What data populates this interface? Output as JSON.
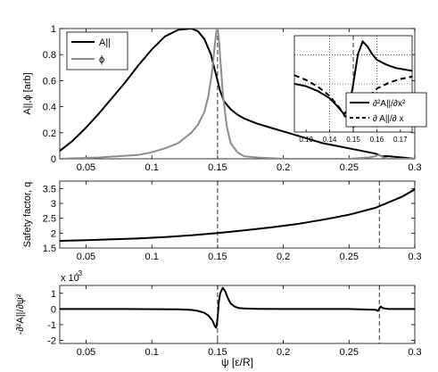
{
  "chart_data": [
    {
      "type": "line",
      "ylabel": "A||,ϕ [arb]",
      "xlim": [
        0.03,
        0.3
      ],
      "ylim": [
        0,
        1
      ],
      "xticks": [
        "0.05",
        "0.1",
        "0.15",
        "0.2",
        "0.25",
        "0.3"
      ],
      "yticks": [
        "0",
        "0.2",
        "0.4",
        "0.6",
        "0.8",
        "1"
      ],
      "legend_position": "top-left",
      "vlines": [
        0.15
      ],
      "series": [
        {
          "name": "A||",
          "color": "#000000",
          "width": 2,
          "x": [
            0.03,
            0.04,
            0.05,
            0.06,
            0.07,
            0.08,
            0.09,
            0.1,
            0.11,
            0.12,
            0.13,
            0.135,
            0.14,
            0.145,
            0.148,
            0.15,
            0.152,
            0.155,
            0.16,
            0.165,
            0.17,
            0.18,
            0.19,
            0.2,
            0.21,
            0.22,
            0.23,
            0.24,
            0.25,
            0.26,
            0.27,
            0.275,
            0.28,
            0.29,
            0.3
          ],
          "y": [
            0.06,
            0.14,
            0.24,
            0.35,
            0.47,
            0.59,
            0.72,
            0.84,
            0.94,
            0.99,
            1.0,
            0.98,
            0.92,
            0.8,
            0.68,
            0.6,
            0.52,
            0.44,
            0.38,
            0.34,
            0.31,
            0.27,
            0.24,
            0.21,
            0.18,
            0.15,
            0.12,
            0.1,
            0.08,
            0.06,
            0.04,
            0.02,
            0.02,
            0.01,
            0.0
          ]
        },
        {
          "name": "ϕ",
          "color": "#8c8c8c",
          "width": 2,
          "x": [
            0.03,
            0.06,
            0.09,
            0.1,
            0.11,
            0.12,
            0.13,
            0.135,
            0.14,
            0.143,
            0.146,
            0.148,
            0.149,
            0.15,
            0.151,
            0.152,
            0.154,
            0.157,
            0.16,
            0.165,
            0.17,
            0.18,
            0.2,
            0.22,
            0.25,
            0.265,
            0.27,
            0.273,
            0.276,
            0.28,
            0.3
          ],
          "y": [
            0.0,
            0.01,
            0.03,
            0.05,
            0.08,
            0.12,
            0.2,
            0.26,
            0.36,
            0.48,
            0.68,
            0.88,
            0.97,
            1.0,
            0.92,
            0.78,
            0.5,
            0.25,
            0.12,
            0.05,
            0.02,
            0.01,
            0.0,
            0.0,
            0.0,
            0.01,
            0.02,
            0.03,
            0.01,
            0.0,
            0.0
          ]
        }
      ]
    },
    {
      "type": "line",
      "ylabel": "Safety factor, q",
      "xlim": [
        0.03,
        0.3
      ],
      "ylim": [
        1.5,
        3.75
      ],
      "xticks": [
        "0.05",
        "0.1",
        "0.15",
        "0.2",
        "0.25",
        "0.3"
      ],
      "yticks": [
        "2",
        "2.5",
        "3",
        "3.5"
      ],
      "extra_yticks": [
        "1.5"
      ],
      "vlines": [
        0.15,
        0.273
      ],
      "series": [
        {
          "color": "#000000",
          "width": 2,
          "x": [
            0.03,
            0.05,
            0.07,
            0.09,
            0.11,
            0.13,
            0.15,
            0.17,
            0.19,
            0.21,
            0.23,
            0.25,
            0.27,
            0.29,
            0.3
          ],
          "y": [
            1.74,
            1.76,
            1.79,
            1.82,
            1.87,
            1.93,
            2.0,
            2.09,
            2.19,
            2.3,
            2.45,
            2.62,
            2.85,
            3.22,
            3.47
          ]
        }
      ]
    },
    {
      "type": "line",
      "ylabel": "-∂²A||/∂ψ²",
      "scale_label": "x 10",
      "scale_exponent": "-3",
      "xlabel": "ψ [ε/R]",
      "xlim": [
        0.03,
        0.3
      ],
      "ylim": [
        -2.2,
        1.5
      ],
      "xticks": [
        "0.05",
        "0.1",
        "0.15",
        "0.2",
        "0.25",
        "0.3"
      ],
      "yticks": [
        "-2",
        "-1",
        "0",
        "1"
      ],
      "vlines": [
        0.15,
        0.273
      ],
      "series": [
        {
          "color": "#000000",
          "width": 2,
          "x": [
            0.03,
            0.08,
            0.12,
            0.13,
            0.135,
            0.14,
            0.143,
            0.146,
            0.148,
            0.149,
            0.15,
            0.151,
            0.152,
            0.154,
            0.156,
            0.158,
            0.16,
            0.163,
            0.166,
            0.17,
            0.18,
            0.2,
            0.25,
            0.27,
            0.272,
            0.274,
            0.276,
            0.28,
            0.3
          ],
          "y": [
            0.0,
            0.0,
            -0.02,
            -0.06,
            -0.12,
            -0.25,
            -0.42,
            -0.72,
            -1.1,
            -1.2,
            -0.6,
            0.5,
            1.0,
            1.35,
            1.1,
            0.65,
            0.35,
            0.15,
            0.06,
            0.03,
            0.01,
            0.0,
            0.0,
            -0.05,
            -0.12,
            0.15,
            0.05,
            0.0,
            0.0
          ]
        }
      ]
    },
    {
      "type": "line",
      "role": "inset",
      "xlim": [
        0.125,
        0.175
      ],
      "ylim": [
        -1,
        1
      ],
      "xticks": [
        "0.13",
        "0.14",
        "0.15",
        "0.16",
        "0.17"
      ],
      "dotted_vlines": [
        0.14,
        0.16
      ],
      "dotted_hlines": [
        0.0,
        0.6
      ],
      "vlines": [
        0.15
      ],
      "legend_position": "bottom-right",
      "series": [
        {
          "name": "∂²A||/∂x²",
          "color": "#000000",
          "width": 2,
          "dash": "",
          "x": [
            0.125,
            0.13,
            0.135,
            0.14,
            0.143,
            0.146,
            0.148,
            0.15,
            0.152,
            0.154,
            0.156,
            0.158,
            0.16,
            0.164,
            0.168,
            0.175
          ],
          "y": [
            0.0,
            -0.05,
            -0.15,
            -0.3,
            -0.45,
            -0.62,
            -0.55,
            0.0,
            0.62,
            0.88,
            0.78,
            0.62,
            0.5,
            0.4,
            0.33,
            0.27
          ]
        },
        {
          "name": "∂ A||/∂ x",
          "color": "#000000",
          "width": 2,
          "dash": "6,4",
          "x": [
            0.125,
            0.13,
            0.135,
            0.14,
            0.145,
            0.148,
            0.15,
            0.152,
            0.154,
            0.156,
            0.158,
            0.16,
            0.165,
            0.17,
            0.175
          ],
          "y": [
            0.18,
            0.08,
            -0.06,
            -0.25,
            -0.55,
            -0.8,
            -0.9,
            -0.78,
            -0.55,
            -0.35,
            -0.2,
            -0.1,
            0.02,
            0.1,
            0.15
          ]
        }
      ]
    }
  ]
}
